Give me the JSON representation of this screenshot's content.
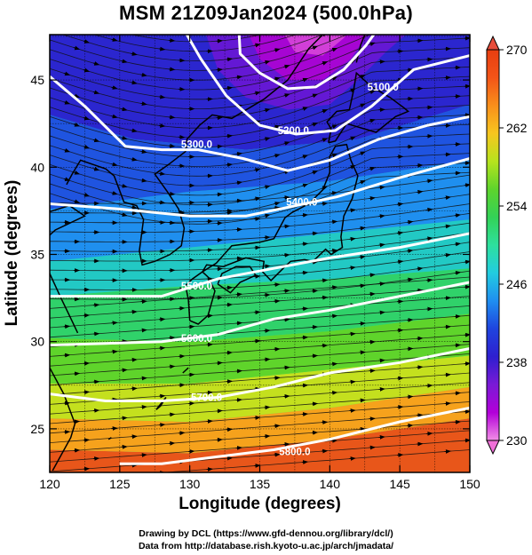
{
  "title": "MSM 21Z09Jan2024 (500.0hPa)",
  "xaxis": {
    "label": "Longitude (degrees)",
    "range": [
      120,
      150
    ],
    "ticks": [
      "120",
      "125",
      "130",
      "135",
      "140",
      "145",
      "150"
    ]
  },
  "yaxis": {
    "label": "Latitude  (degrees)",
    "range": [
      22.5,
      47.6
    ],
    "ticks": [
      "25",
      "30",
      "35",
      "40",
      "45"
    ]
  },
  "colorbar": {
    "min": 230,
    "max": 270,
    "ticks": [
      "230",
      "238",
      "246",
      "254",
      "262",
      "270"
    ],
    "colors": [
      "#f28ee6",
      "#b300d9",
      "#7a1ad6",
      "#2e1fd0",
      "#1f44de",
      "#1f8ef0",
      "#22cde0",
      "#2ee09e",
      "#33d257",
      "#5ed42c",
      "#b6e31e",
      "#f7c61f",
      "#f98f1b",
      "#f35418",
      "#e83e10"
    ]
  },
  "contours": [
    {
      "label": "5100.0"
    },
    {
      "label": "5200.0"
    },
    {
      "label": "5300.0"
    },
    {
      "label": "5400.0"
    },
    {
      "label": "5500.0"
    },
    {
      "label": "5600.0"
    },
    {
      "label": "5700.0"
    },
    {
      "label": "5800.0"
    }
  ],
  "credits": {
    "line1": "Drawing by DCL (https://www.gfd-dennou.org/library/dcl/)",
    "line2": "Data from http://database.rish.kyoto-u.ac.jp/arch/jmadata/"
  }
}
